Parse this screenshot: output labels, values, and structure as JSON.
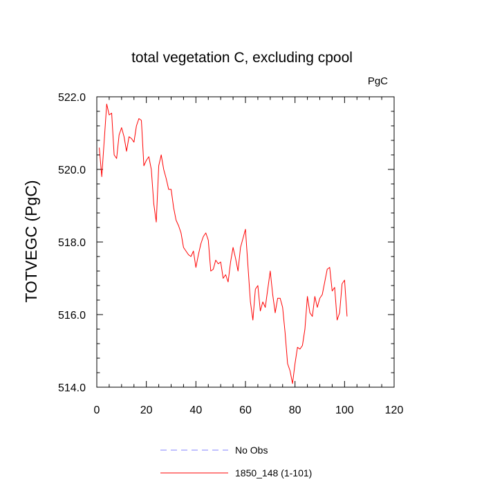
{
  "chart_data": {
    "type": "line",
    "title": "total vegetation C, excluding cpool",
    "units": "PgC",
    "xlabel": "",
    "ylabel": "TOTVEGC  (PgC)",
    "xlim": [
      0,
      120
    ],
    "ylim": [
      514.0,
      522.0
    ],
    "x_ticks": [
      0,
      20,
      40,
      60,
      80,
      100,
      120
    ],
    "x_tick_labels": [
      "0",
      "20",
      "40",
      "60",
      "80",
      "100",
      "120"
    ],
    "y_ticks": [
      514.0,
      516.0,
      518.0,
      520.0,
      522.0
    ],
    "y_tick_labels": [
      "514.0",
      "516.0",
      "518.0",
      "520.0",
      "522.0"
    ],
    "series": [
      {
        "name": "1850_148 (1-101)",
        "color": "#ff0000",
        "style": "solid",
        "x": [
          1,
          2,
          3,
          4,
          5,
          6,
          7,
          8,
          9,
          10,
          11,
          12,
          13,
          14,
          15,
          16,
          17,
          18,
          19,
          20,
          21,
          22,
          23,
          24,
          25,
          26,
          27,
          28,
          29,
          30,
          31,
          32,
          33,
          34,
          35,
          36,
          37,
          38,
          39,
          40,
          41,
          42,
          43,
          44,
          45,
          46,
          47,
          48,
          49,
          50,
          51,
          52,
          53,
          54,
          55,
          56,
          57,
          58,
          59,
          60,
          61,
          62,
          63,
          64,
          65,
          66,
          67,
          68,
          69,
          70,
          71,
          72,
          73,
          74,
          75,
          76,
          77,
          78,
          79,
          80,
          81,
          82,
          83,
          84,
          85,
          86,
          87,
          88,
          89,
          90,
          91,
          92,
          93,
          94,
          95,
          96,
          97,
          98,
          99,
          100,
          101
        ],
        "values": [
          520.6,
          519.8,
          520.8,
          521.8,
          521.5,
          521.55,
          520.4,
          520.3,
          520.95,
          521.15,
          520.9,
          520.5,
          520.9,
          520.85,
          520.75,
          521.2,
          521.4,
          521.35,
          520.1,
          520.25,
          520.35,
          520.0,
          519.05,
          518.55,
          520.1,
          520.4,
          520.0,
          519.75,
          519.45,
          519.45,
          518.95,
          518.6,
          518.45,
          518.25,
          517.85,
          517.75,
          517.65,
          517.6,
          517.75,
          517.3,
          517.65,
          517.95,
          518.15,
          518.25,
          518.05,
          517.2,
          517.25,
          517.5,
          517.4,
          517.45,
          517.0,
          517.1,
          516.9,
          517.45,
          517.85,
          517.55,
          517.2,
          517.85,
          518.1,
          518.35,
          517.35,
          516.35,
          515.85,
          516.7,
          516.8,
          516.1,
          516.35,
          516.2,
          516.7,
          517.2,
          516.55,
          516.05,
          516.45,
          516.45,
          516.2,
          515.5,
          514.65,
          514.45,
          514.1,
          514.65,
          515.1,
          515.05,
          515.15,
          515.6,
          516.5,
          516.05,
          515.95,
          516.5,
          516.2,
          516.45,
          516.55,
          516.9,
          517.25,
          517.3,
          516.65,
          516.75,
          515.85,
          516.05,
          516.85,
          516.95,
          515.95
        ]
      }
    ],
    "legend": [
      {
        "label": "No Obs",
        "color": "#8080ff",
        "style": "dashed"
      },
      {
        "label": "1850_148 (1-101)",
        "color": "#ff0000",
        "style": "solid"
      }
    ],
    "legend_position": "bottom-center",
    "grid": false
  }
}
